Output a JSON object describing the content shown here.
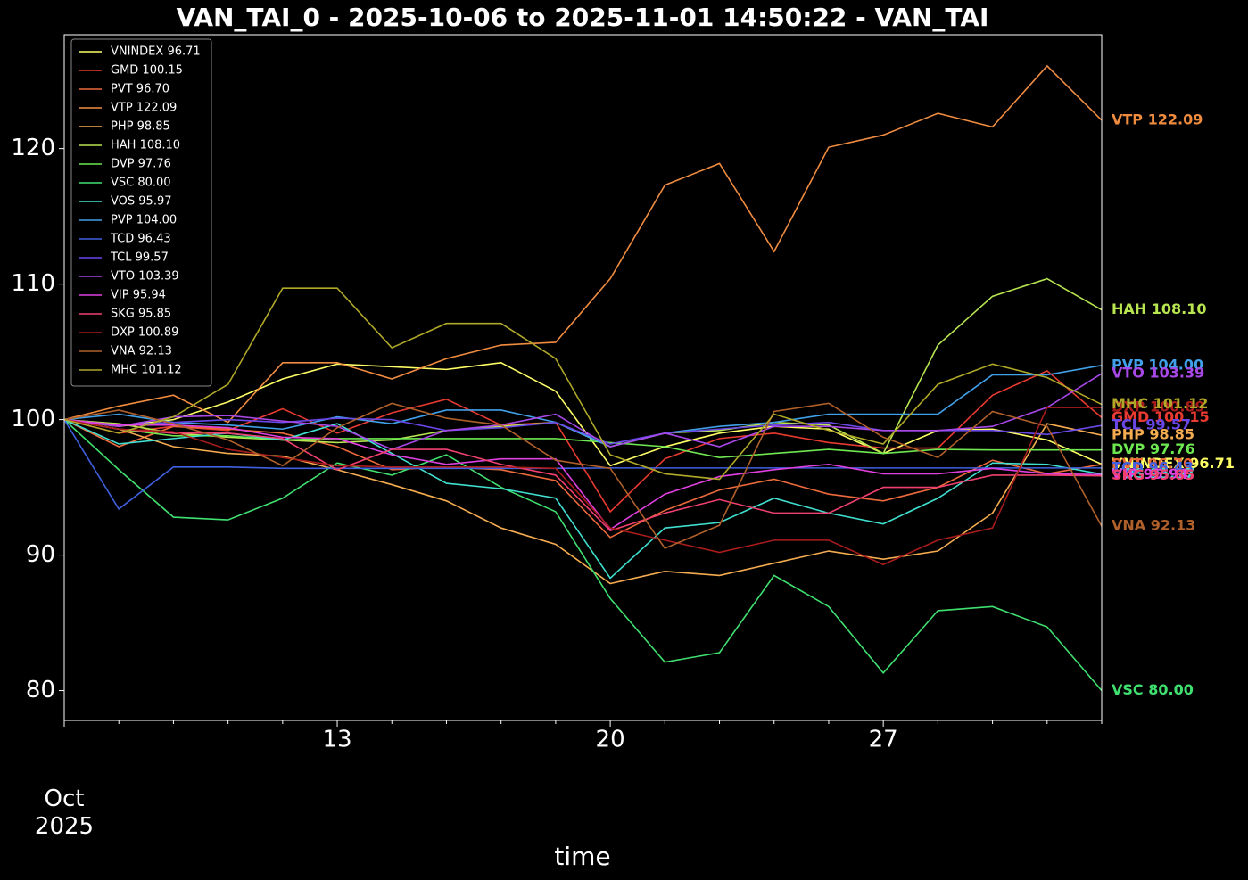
{
  "chart_data": {
    "type": "line",
    "title": "VAN_TAI_0 - 2025-10-06 to 2025-11-01 14:50:22 - VAN_TAI",
    "xlabel": "time",
    "categories": [
      "Oct\n2025",
      null,
      null,
      null,
      null,
      "13",
      null,
      null,
      null,
      null,
      "20",
      null,
      null,
      null,
      null,
      "27",
      null,
      null,
      null,
      null
    ],
    "ylim": [
      77.8,
      128.4
    ],
    "yticks": [
      80,
      90,
      100,
      110,
      120
    ],
    "legend": "upper left",
    "series": [
      {
        "name": "VNINDEX 96.71",
        "color": "#ffff66",
        "values": [
          100,
          99.5,
          100,
          101.3,
          103,
          104.1,
          103.9,
          103.7,
          104.2,
          102.1,
          96.6,
          98,
          99,
          99.5,
          99.3,
          97.5,
          99.2,
          99.3,
          98.5,
          96.71
        ]
      },
      {
        "name": "GMD 100.15",
        "color": "#e83a30",
        "values": [
          100,
          99,
          99.5,
          99.2,
          100.8,
          99,
          100.5,
          101.5,
          99.6,
          99.8,
          93.2,
          97.1,
          98.6,
          99,
          98.3,
          97.9,
          97.9,
          101.8,
          103.6,
          100.15
        ]
      },
      {
        "name": "PVT 96.70",
        "color": "#ec6a3c",
        "values": [
          100,
          98,
          99.5,
          99.3,
          99,
          98,
          96.3,
          96.5,
          96.3,
          95.5,
          91.3,
          93.3,
          94.8,
          95.6,
          94.5,
          94,
          95,
          97,
          96,
          96.7
        ]
      },
      {
        "name": "VTP 122.09",
        "color": "#f08c40",
        "values": [
          100,
          101,
          101.8,
          99.8,
          104.2,
          104.2,
          103,
          104.5,
          105.5,
          105.7,
          110.4,
          117.3,
          118.9,
          112.4,
          120.1,
          121,
          122.6,
          121.6,
          126.1,
          122.09
        ]
      },
      {
        "name": "PHP 98.85",
        "color": "#f5ac50",
        "values": [
          100,
          99.3,
          98,
          97.5,
          97.3,
          96.3,
          95.2,
          94,
          92,
          90.8,
          87.9,
          88.8,
          88.5,
          89.4,
          90.3,
          89.7,
          90.3,
          93.1,
          99.7,
          98.85
        ]
      },
      {
        "name": "HAH 108.10",
        "color": "#b8e650",
        "values": [
          100,
          99.7,
          99,
          98.7,
          98.5,
          98.3,
          98.5,
          99.2,
          99.5,
          99.8,
          98,
          99,
          99.2,
          99.8,
          99.6,
          97.5,
          105.5,
          109.1,
          110.4,
          108.1
        ]
      },
      {
        "name": "DVP 97.76",
        "color": "#6ee850",
        "values": [
          100,
          99.3,
          98.8,
          98.8,
          98.5,
          98.6,
          98.6,
          98.6,
          98.6,
          98.6,
          98.3,
          98,
          97.2,
          97.5,
          97.8,
          97.5,
          97.8,
          97.76,
          97.76,
          97.76
        ]
      },
      {
        "name": "VSC 80.00",
        "color": "#40e070",
        "values": [
          100,
          96.3,
          92.8,
          92.6,
          94.2,
          96.8,
          95.9,
          97.4,
          95,
          93.2,
          86.8,
          82.1,
          82.8,
          88.5,
          86.2,
          81.3,
          85.9,
          86.2,
          84.7,
          80.0
        ]
      },
      {
        "name": "VOS 95.97",
        "color": "#40e0d0",
        "values": [
          100,
          98.2,
          98.6,
          99,
          98.5,
          99.7,
          97.5,
          95.3,
          94.9,
          94.2,
          88.3,
          92,
          92.4,
          94.2,
          93.1,
          92.3,
          94.2,
          96.8,
          96.7,
          95.97
        ]
      },
      {
        "name": "PVP 104.00",
        "color": "#40a0e8",
        "values": [
          100,
          100.4,
          99.8,
          99.6,
          99.3,
          100.2,
          99.7,
          100.7,
          100.7,
          99.8,
          98,
          99,
          99.5,
          99.8,
          100.4,
          100.4,
          100.4,
          103.3,
          103.3,
          104.0
        ]
      },
      {
        "name": "TCD 96.43",
        "color": "#4060e0",
        "values": [
          100,
          93.4,
          96.5,
          96.5,
          96.4,
          96.4,
          96.4,
          96.4,
          96.4,
          96.4,
          96.43,
          96.43,
          96.43,
          96.43,
          96.43,
          96.43,
          96.43,
          96.43,
          96.43,
          96.43
        ]
      },
      {
        "name": "TCL 99.57",
        "color": "#6a48e8",
        "values": [
          100,
          99.6,
          99.8,
          100,
          99.8,
          100.1,
          100,
          99.2,
          99.4,
          99.8,
          98.2,
          99,
          99.3,
          99.6,
          99.8,
          99.2,
          99.2,
          99.2,
          98.9,
          99.57
        ]
      },
      {
        "name": "VTO 103.39",
        "color": "#a848e8",
        "values": [
          100,
          99.5,
          100.2,
          100.3,
          99.9,
          99.5,
          97.8,
          99.2,
          99.6,
          100.4,
          98,
          99,
          98,
          99.5,
          99.5,
          99.2,
          99.2,
          99.5,
          100.9,
          103.39
        ]
      },
      {
        "name": "VIP 95.94",
        "color": "#e040e0",
        "values": [
          100,
          99.6,
          99.6,
          99.4,
          98.7,
          98.6,
          97.4,
          96.7,
          97.1,
          97.1,
          91.9,
          94.5,
          95.8,
          96.3,
          96.7,
          96,
          96,
          96.4,
          96,
          95.94
        ]
      },
      {
        "name": "SKG 95.85",
        "color": "#f04070",
        "values": [
          100,
          99.3,
          99,
          99,
          98.6,
          96.3,
          97.8,
          97.8,
          96.7,
          95.9,
          91.8,
          93.1,
          94.1,
          93.1,
          93.1,
          95,
          95,
          95.9,
          95.9,
          95.85
        ]
      },
      {
        "name": "DXP 100.89",
        "color": "#a81c1c",
        "values": [
          100,
          99.3,
          99.1,
          97.8,
          97.2,
          96.6,
          96.5,
          96.5,
          96.5,
          96.4,
          92,
          91.1,
          90.2,
          91.1,
          91.1,
          89.3,
          91.1,
          92,
          100.89,
          100.89
        ]
      },
      {
        "name": "VNA 92.13",
        "color": "#b0602a",
        "values": [
          100,
          100.7,
          99.7,
          98.5,
          96.6,
          99.4,
          101.2,
          100.1,
          99.6,
          97,
          96.4,
          90.5,
          92.2,
          100.6,
          101.2,
          98.7,
          97.2,
          100.6,
          99.5,
          92.13
        ]
      },
      {
        "name": "MHC 101.12",
        "color": "#b0a828",
        "values": [
          100,
          99,
          100.2,
          102.6,
          109.7,
          109.7,
          105.3,
          107.1,
          107.1,
          104.5,
          97.4,
          96,
          95.6,
          100.4,
          99.2,
          98.2,
          102.6,
          104.1,
          103.1,
          101.12
        ]
      }
    ]
  }
}
